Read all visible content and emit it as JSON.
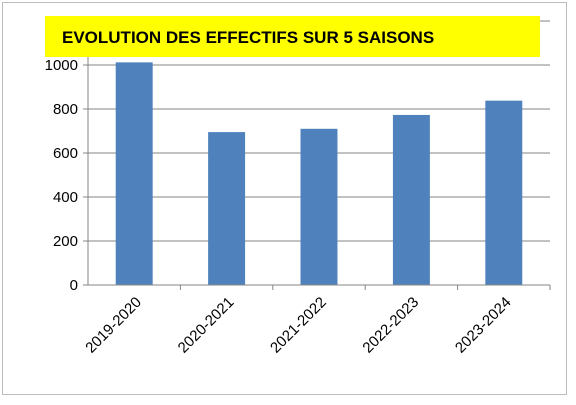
{
  "chart_data": {
    "type": "bar",
    "title": "EVOLUTION DES EFFECTIFS SUR 5 SAISONS",
    "categories": [
      "2019-2020",
      "2020-2021",
      "2021-2022",
      "2022-2023",
      "2023-2024"
    ],
    "values": [
      1012,
      695,
      710,
      773,
      838
    ],
    "color": "#4f81bd",
    "ylim": [
      0,
      1200
    ],
    "yticks": [
      0,
      200,
      400,
      600,
      800,
      1000,
      1200
    ],
    "grid": true
  }
}
